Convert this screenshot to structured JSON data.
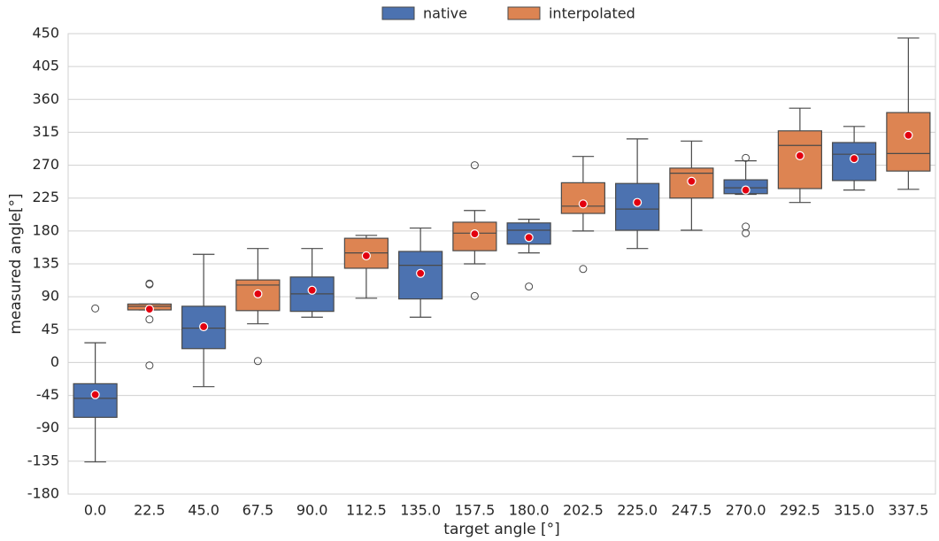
{
  "chart_data": {
    "type": "box",
    "x_label": "target angle [°]",
    "y_label": "measured angle[°]",
    "categories": [
      "0.0",
      "22.5",
      "45.0",
      "67.5",
      "90.0",
      "112.5",
      "135.0",
      "157.5",
      "180.0",
      "202.5",
      "225.0",
      "247.5",
      "270.0",
      "292.5",
      "315.0",
      "337.5"
    ],
    "ylim": [
      -180,
      450
    ],
    "yticks": [
      -180,
      -135,
      -90,
      -45,
      0,
      45,
      90,
      135,
      180,
      225,
      270,
      315,
      360,
      405,
      450
    ],
    "grid": true,
    "legend": "top",
    "series": [
      {
        "name": "native",
        "color": "#4c72b0",
        "boxes": [
          {
            "whisker_low": -136,
            "q1": -75,
            "median": -49,
            "q3": -29,
            "whisker_high": 27,
            "mean": -44,
            "outliers": [
              74
            ]
          },
          null,
          {
            "whisker_low": -33,
            "q1": 19,
            "median": 47,
            "q3": 77,
            "whisker_high": 148,
            "mean": 49,
            "outliers": []
          },
          null,
          {
            "whisker_low": 62,
            "q1": 70,
            "median": 94,
            "q3": 117,
            "whisker_high": 156,
            "mean": 99,
            "outliers": []
          },
          null,
          {
            "whisker_low": 62,
            "q1": 87,
            "median": 133,
            "q3": 152,
            "whisker_high": 184,
            "mean": 122,
            "outliers": []
          },
          null,
          {
            "whisker_low": 150,
            "q1": 162,
            "median": 181,
            "q3": 191,
            "whisker_high": 196,
            "mean": 171,
            "outliers": [
              104
            ]
          },
          null,
          {
            "whisker_low": 156,
            "q1": 181,
            "median": 210,
            "q3": 245,
            "whisker_high": 306,
            "mean": 219,
            "outliers": []
          },
          null,
          {
            "whisker_low": 230,
            "q1": 231,
            "median": 239,
            "q3": 250,
            "whisker_high": 276,
            "mean": 236,
            "outliers": [
              280,
              186,
              177
            ]
          },
          null,
          {
            "whisker_low": 236,
            "q1": 249,
            "median": 285,
            "q3": 301,
            "whisker_high": 323,
            "mean": 279,
            "outliers": []
          },
          null
        ]
      },
      {
        "name": "interpolated",
        "color": "#dd8452",
        "boxes": [
          null,
          {
            "whisker_low": 72,
            "q1": 72,
            "median": 77,
            "q3": 80,
            "whisker_high": 80,
            "mean": 73,
            "outliers": [
              107,
              108,
              59,
              -4
            ]
          },
          null,
          {
            "whisker_low": 53,
            "q1": 71,
            "median": 106,
            "q3": 113,
            "whisker_high": 156,
            "mean": 94,
            "outliers": [
              2
            ]
          },
          null,
          {
            "whisker_low": 88,
            "q1": 129,
            "median": 150,
            "q3": 170,
            "whisker_high": 174,
            "mean": 146,
            "outliers": []
          },
          null,
          {
            "whisker_low": 135,
            "q1": 153,
            "median": 177,
            "q3": 192,
            "whisker_high": 208,
            "mean": 176,
            "outliers": [
              270,
              91
            ]
          },
          null,
          {
            "whisker_low": 180,
            "q1": 204,
            "median": 214,
            "q3": 246,
            "whisker_high": 282,
            "mean": 217,
            "outliers": [
              128
            ]
          },
          null,
          {
            "whisker_low": 181,
            "q1": 225,
            "median": 259,
            "q3": 266,
            "whisker_high": 303,
            "mean": 248,
            "outliers": []
          },
          null,
          {
            "whisker_low": 219,
            "q1": 238,
            "median": 297,
            "q3": 317,
            "whisker_high": 348,
            "mean": 283,
            "outliers": []
          },
          null,
          {
            "whisker_low": 237,
            "q1": 262,
            "median": 286,
            "q3": 342,
            "whisker_high": 444,
            "mean": 311,
            "outliers": []
          }
        ]
      }
    ]
  }
}
